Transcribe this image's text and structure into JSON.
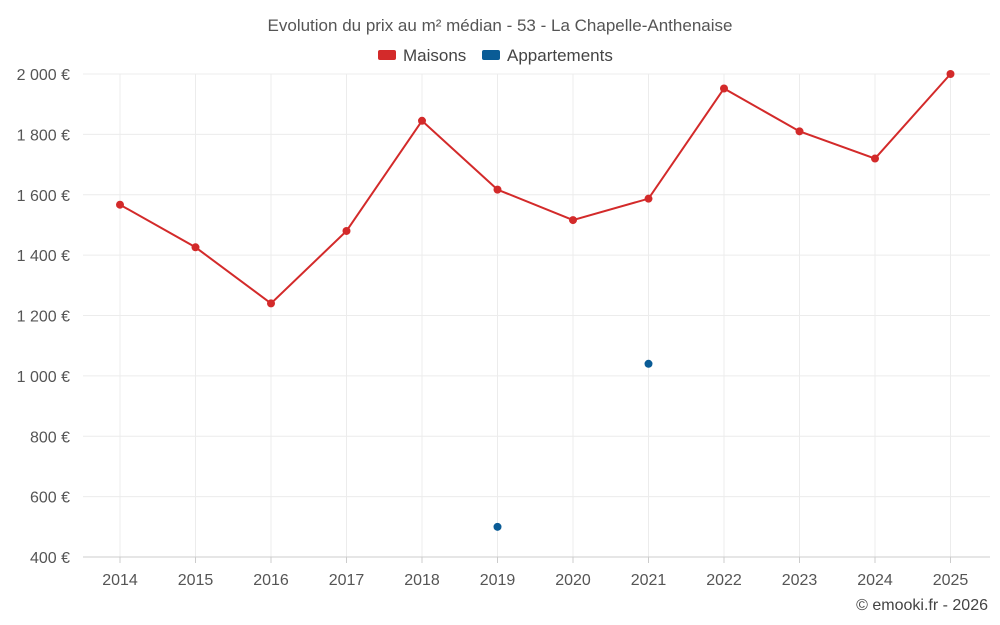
{
  "chart_data": {
    "type": "line",
    "title": "Evolution du prix au m² médian - 53 - La Chapelle-Anthenaise",
    "categories": [
      "2014",
      "2015",
      "2016",
      "2017",
      "2018",
      "2019",
      "2020",
      "2021",
      "2022",
      "2023",
      "2024",
      "2025"
    ],
    "series": [
      {
        "name": "Maisons",
        "color": "#d32a2a",
        "values": [
          1567,
          1426,
          1240,
          1480,
          1845,
          1617,
          1516,
          1587,
          1952,
          1810,
          1720,
          2000
        ]
      },
      {
        "name": "Appartements",
        "color": "#0a5c96",
        "values": [
          null,
          null,
          null,
          null,
          null,
          500,
          null,
          1040,
          null,
          null,
          null,
          null
        ]
      }
    ],
    "ylim": [
      400,
      2000
    ],
    "yticks": [
      400,
      600,
      800,
      1000,
      1200,
      1400,
      1600,
      1800,
      2000
    ],
    "ytick_labels": [
      "400 €",
      "600 €",
      "800 €",
      "1 000 €",
      "1 200 €",
      "1 400 €",
      "1 600 €",
      "1 800 €",
      "2 000 €"
    ],
    "xlabel": "",
    "ylabel": "",
    "legend_position": "top-center",
    "grid": true
  },
  "credit": "© emooki.fr - 2026"
}
